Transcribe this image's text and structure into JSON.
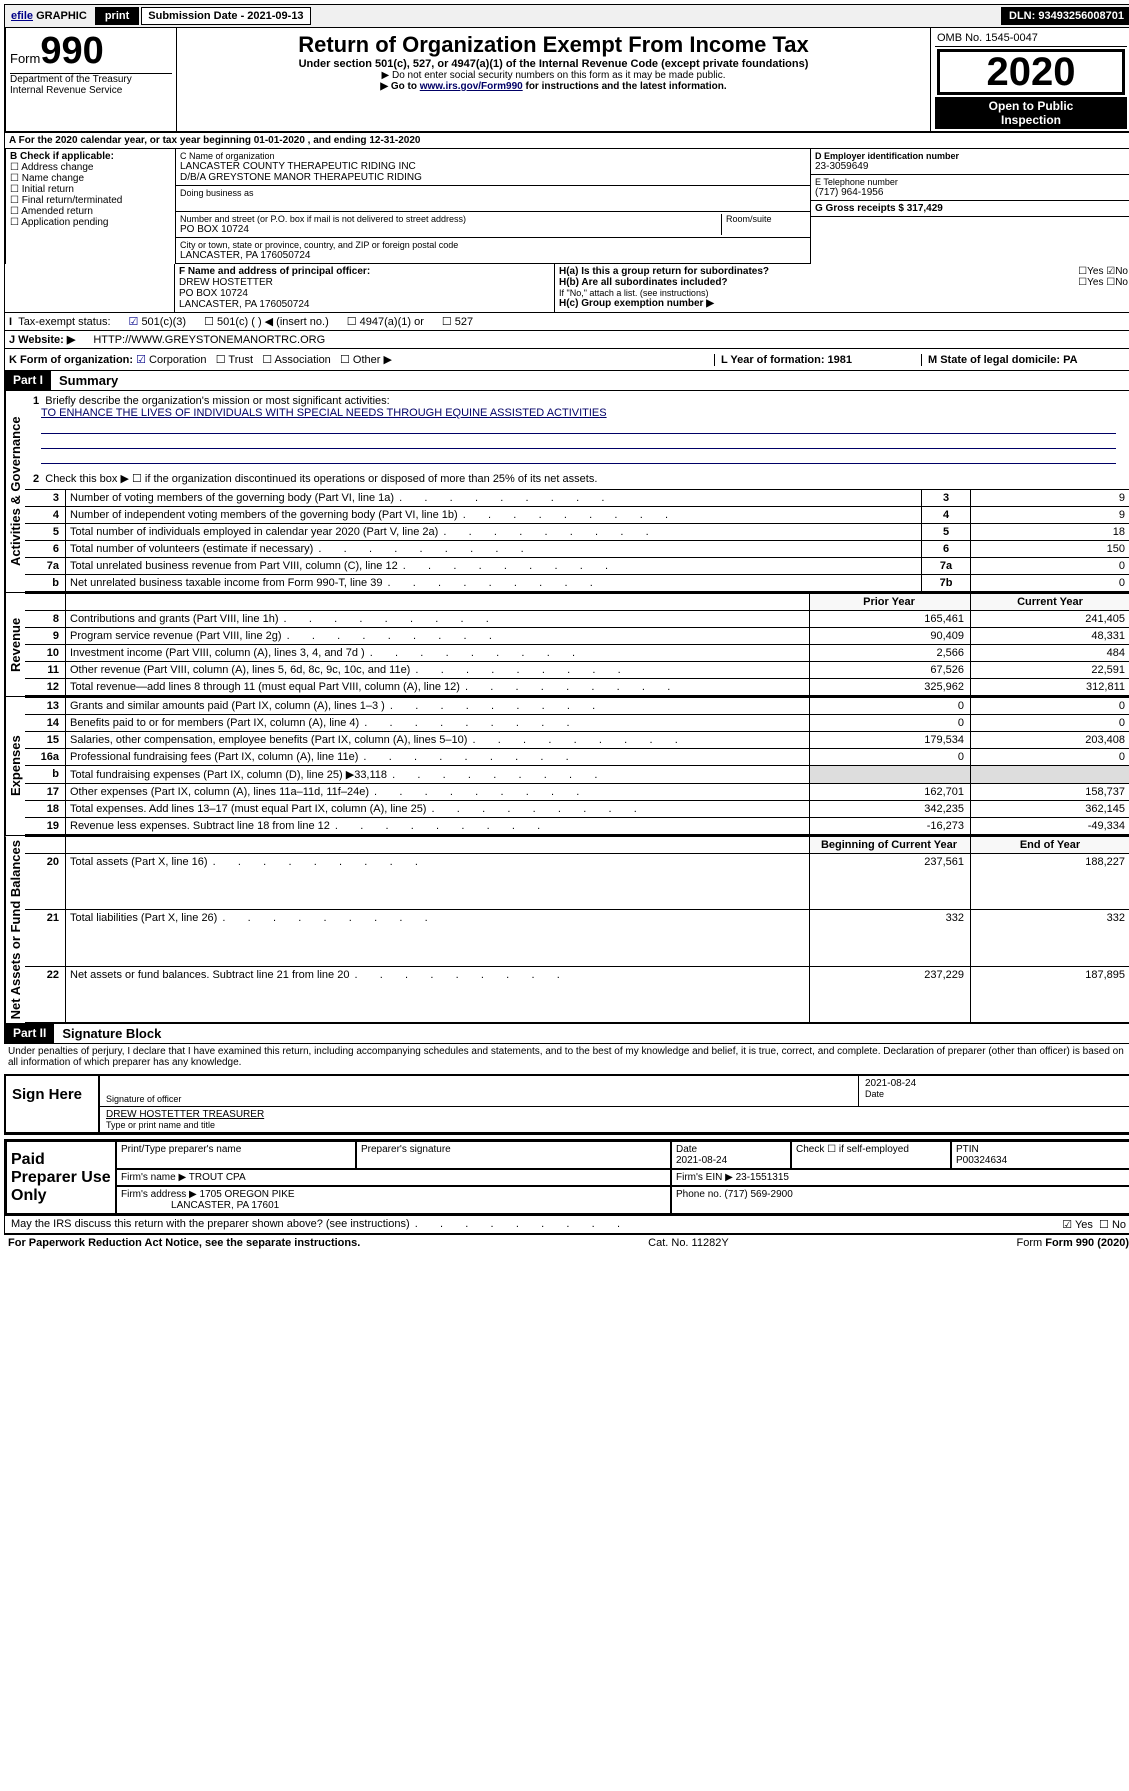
{
  "topbar": {
    "efile_label": "efile",
    "graphic_label": "GRAPHIC",
    "print_label": "print",
    "submission_label": "Submission Date - 2021-09-13",
    "dln_label": "DLN: 93493256008701"
  },
  "header": {
    "form_prefix": "Form",
    "form_number": "990",
    "dept1": "Department of the Treasury",
    "dept2": "Internal Revenue Service",
    "main_title": "Return of Organization Exempt From Income Tax",
    "subtitle": "Under section 501(c), 527, or 4947(a)(1) of the Internal Revenue Code (except private foundations)",
    "note1": "▶ Do not enter social security numbers on this form as it may be made public.",
    "note2_pre": "▶ Go to ",
    "note2_link": "www.irs.gov/Form990",
    "note2_post": " for instructions and the latest information.",
    "omb": "OMB No. 1545-0047",
    "year": "2020",
    "public1": "Open to Public",
    "public2": "Inspection"
  },
  "row_a": "A  For the 2020 calendar year, or tax year beginning 01-01-2020    , and ending 12-31-2020",
  "section_b": {
    "title": "B Check if applicable:",
    "items": [
      "Address change",
      "Name change",
      "Initial return",
      "Final return/terminated",
      "Amended return",
      "Application pending"
    ]
  },
  "section_c": {
    "name_label": "C Name of organization",
    "name1": "LANCASTER COUNTY THERAPEUTIC RIDING INC",
    "name2": "D/B/A GREYSTONE MANOR THERAPEUTIC RIDING",
    "dba_label": "Doing business as",
    "addr_label": "Number and street (or P.O. box if mail is not delivered to street address)",
    "room_label": "Room/suite",
    "addr": "PO BOX 10724",
    "city_label": "City or town, state or province, country, and ZIP or foreign postal code",
    "city": "LANCASTER, PA  176050724"
  },
  "section_d": {
    "ein_label": "D Employer identification number",
    "ein": "23-3059649",
    "tel_label": "E Telephone number",
    "tel": "(717) 964-1956",
    "gross_label": "G Gross receipts $ 317,429"
  },
  "section_f": {
    "label": "F  Name and address of principal officer:",
    "name": "DREW HOSTETTER",
    "addr1": "PO BOX 10724",
    "addr2": "LANCASTER, PA  176050724"
  },
  "section_h": {
    "ha_label": "H(a)  Is this a group return for subordinates?",
    "hb_label": "H(b)  Are all subordinates included?",
    "hb_note": "If \"No,\" attach a list. (see instructions)",
    "hc_label": "H(c)  Group exemption number ▶",
    "yes": "Yes",
    "no": "No"
  },
  "row_i": {
    "label": "Tax-exempt status:",
    "opt1": "501(c)(3)",
    "opt2": "501(c) (  ) ◀ (insert no.)",
    "opt3": "4947(a)(1) or",
    "opt4": "527"
  },
  "row_j": {
    "label": "J   Website: ▶",
    "value": "HTTP://WWW.GREYSTONEMANORTRC.ORG"
  },
  "row_k": {
    "label": "K Form of organization:",
    "opts": [
      "Corporation",
      "Trust",
      "Association",
      "Other ▶"
    ],
    "l_label": "L Year of formation: 1981",
    "m_label": "M State of legal domicile: PA"
  },
  "parts": {
    "part1_label": "Part I",
    "part1_title": "Summary",
    "part2_label": "Part II",
    "part2_title": "Signature Block"
  },
  "summary": {
    "q1": "Briefly describe the organization's mission or most significant activities:",
    "mission": "TO ENHANCE THE LIVES OF INDIVIDUALS WITH SPECIAL NEEDS THROUGH EQUINE ASSISTED ACTIVITIES",
    "q2": "Check this box ▶ ☐  if the organization discontinued its operations or disposed of more than 25% of its net assets.",
    "side_labels": {
      "gov": "Activities & Governance",
      "rev": "Revenue",
      "exp": "Expenses",
      "net": "Net Assets or Fund Balances"
    },
    "col_prior": "Prior Year",
    "col_current": "Current Year",
    "col_begin": "Beginning of Current Year",
    "col_end": "End of Year",
    "rows_gov": [
      {
        "n": "3",
        "t": "Number of voting members of the governing body (Part VI, line 1a)",
        "box": "3",
        "v": "9"
      },
      {
        "n": "4",
        "t": "Number of independent voting members of the governing body (Part VI, line 1b)",
        "box": "4",
        "v": "9"
      },
      {
        "n": "5",
        "t": "Total number of individuals employed in calendar year 2020 (Part V, line 2a)",
        "box": "5",
        "v": "18"
      },
      {
        "n": "6",
        "t": "Total number of volunteers (estimate if necessary)",
        "box": "6",
        "v": "150"
      },
      {
        "n": "7a",
        "t": "Total unrelated business revenue from Part VIII, column (C), line 12",
        "box": "7a",
        "v": "0"
      },
      {
        "n": "b",
        "t": "Net unrelated business taxable income from Form 990-T, line 39",
        "box": "7b",
        "v": "0"
      }
    ],
    "rows_rev": [
      {
        "n": "8",
        "t": "Contributions and grants (Part VIII, line 1h)",
        "p": "165,461",
        "c": "241,405"
      },
      {
        "n": "9",
        "t": "Program service revenue (Part VIII, line 2g)",
        "p": "90,409",
        "c": "48,331"
      },
      {
        "n": "10",
        "t": "Investment income (Part VIII, column (A), lines 3, 4, and 7d )",
        "p": "2,566",
        "c": "484"
      },
      {
        "n": "11",
        "t": "Other revenue (Part VIII, column (A), lines 5, 6d, 8c, 9c, 10c, and 11e)",
        "p": "67,526",
        "c": "22,591"
      },
      {
        "n": "12",
        "t": "Total revenue—add lines 8 through 11 (must equal Part VIII, column (A), line 12)",
        "p": "325,962",
        "c": "312,811"
      }
    ],
    "rows_exp": [
      {
        "n": "13",
        "t": "Grants and similar amounts paid (Part IX, column (A), lines 1–3 )",
        "p": "0",
        "c": "0"
      },
      {
        "n": "14",
        "t": "Benefits paid to or for members (Part IX, column (A), line 4)",
        "p": "0",
        "c": "0"
      },
      {
        "n": "15",
        "t": "Salaries, other compensation, employee benefits (Part IX, column (A), lines 5–10)",
        "p": "179,534",
        "c": "203,408"
      },
      {
        "n": "16a",
        "t": "Professional fundraising fees (Part IX, column (A), line 11e)",
        "p": "0",
        "c": "0"
      },
      {
        "n": "b",
        "t": "Total fundraising expenses (Part IX, column (D), line 25) ▶33,118",
        "p": "",
        "c": ""
      },
      {
        "n": "17",
        "t": "Other expenses (Part IX, column (A), lines 11a–11d, 11f–24e)",
        "p": "162,701",
        "c": "158,737"
      },
      {
        "n": "18",
        "t": "Total expenses. Add lines 13–17 (must equal Part IX, column (A), line 25)",
        "p": "342,235",
        "c": "362,145"
      },
      {
        "n": "19",
        "t": "Revenue less expenses. Subtract line 18 from line 12",
        "p": "-16,273",
        "c": "-49,334"
      }
    ],
    "rows_net": [
      {
        "n": "20",
        "t": "Total assets (Part X, line 16)",
        "p": "237,561",
        "c": "188,227"
      },
      {
        "n": "21",
        "t": "Total liabilities (Part X, line 26)",
        "p": "332",
        "c": "332"
      },
      {
        "n": "22",
        "t": "Net assets or fund balances. Subtract line 21 from line 20",
        "p": "237,229",
        "c": "187,895"
      }
    ]
  },
  "sig": {
    "declaration": "Under penalties of perjury, I declare that I have examined this return, including accompanying schedules and statements, and to the best of my knowledge and belief, it is true, correct, and complete. Declaration of preparer (other than officer) is based on all information of which preparer has any knowledge.",
    "sign_here": "Sign Here",
    "sig_officer": "Signature of officer",
    "date": "Date",
    "date_val": "2021-08-24",
    "name_title": "DREW HOSTETTER  TREASURER",
    "type_name": "Type or print name and title",
    "paid_label": "Paid Preparer Use Only",
    "prep_name_label": "Print/Type preparer's name",
    "prep_sig_label": "Preparer's signature",
    "prep_date_label": "Date",
    "prep_date": "2021-08-24",
    "check_label": "Check ☐ if self-employed",
    "ptin_label": "PTIN",
    "ptin": "P00324634",
    "firm_name_label": "Firm's name    ▶",
    "firm_name": "TROUT CPA",
    "firm_ein_label": "Firm's EIN ▶ 23-1551315",
    "firm_addr_label": "Firm's address ▶",
    "firm_addr1": "1705 OREGON PIKE",
    "firm_addr2": "LANCASTER, PA  17601",
    "phone_label": "Phone no. (717) 569-2900",
    "may_irs": "May the IRS discuss this return with the preparer shown above? (see instructions)",
    "yes": "Yes",
    "no": "No"
  },
  "footer": {
    "paperwork": "For Paperwork Reduction Act Notice, see the separate instructions.",
    "cat": "Cat. No. 11282Y",
    "form": "Form 990 (2020)"
  }
}
